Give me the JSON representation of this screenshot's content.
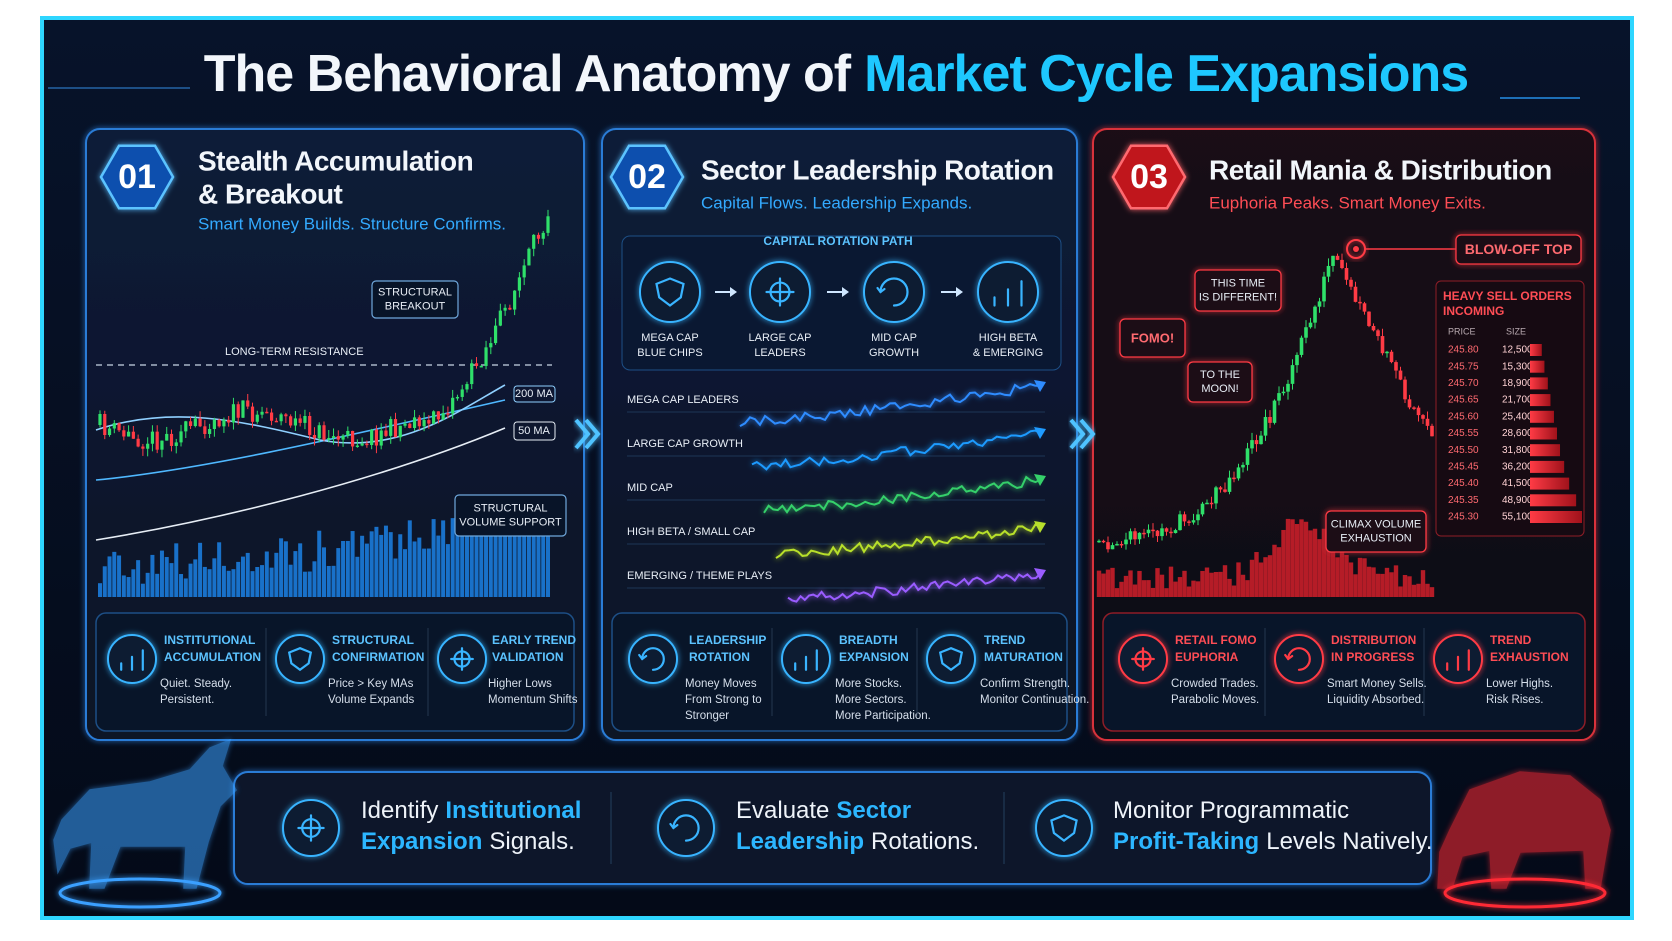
{
  "title": {
    "lead": "The Behavioral Anatomy of",
    "highlight": "Market Cycle Expansions"
  },
  "panels": [
    {
      "number": "01",
      "title": [
        "Stealth Accumulation",
        "& Breakout"
      ],
      "subtitle": "Smart Money Builds. Structure Confirms.",
      "chart": {
        "breakout": [
          "STRUCTURAL",
          "BREAKOUT"
        ],
        "resistance": "LONG-TERM RESISTANCE",
        "ma_long": "200 MA",
        "ma_short": "50 MA",
        "volume": [
          "STRUCTURAL",
          "VOLUME SUPPORT"
        ]
      },
      "features": [
        {
          "title": [
            "INSTITUTIONAL",
            "ACCUMULATION"
          ],
          "text": [
            "Quiet. Steady.",
            "Persistent."
          ]
        },
        {
          "title": [
            "STRUCTURAL",
            "CONFIRMATION"
          ],
          "text": [
            "Price > Key MAs",
            "Volume Expands"
          ]
        },
        {
          "title": [
            "EARLY TREND",
            "VALIDATION"
          ],
          "text": [
            "Higher Lows",
            "Momentum Shifts"
          ]
        }
      ]
    },
    {
      "number": "02",
      "title": [
        "Sector Leadership Rotation"
      ],
      "subtitle": "Capital Flows. Leadership Expands.",
      "path": {
        "label": "CAPITAL ROTATION PATH",
        "steps": [
          [
            "MEGA CAP",
            "BLUE CHIPS"
          ],
          [
            "LARGE CAP",
            "LEADERS"
          ],
          [
            "MID CAP",
            "GROWTH"
          ],
          [
            "HIGH BETA",
            "& EMERGING"
          ]
        ]
      },
      "sectors": [
        {
          "name": "MEGA CAP LEADERS",
          "color": "#2f8cff"
        },
        {
          "name": "LARGE CAP GROWTH",
          "color": "#1f9bff"
        },
        {
          "name": "MID CAP",
          "color": "#35d06a"
        },
        {
          "name": "HIGH BETA / SMALL CAP",
          "color": "#b8e02c"
        },
        {
          "name": "EMERGING / THEME PLAYS",
          "color": "#9a5cff"
        }
      ],
      "features": [
        {
          "title": [
            "LEADERSHIP",
            "ROTATION"
          ],
          "text": [
            "Money Moves",
            "From Strong to",
            "Stronger"
          ]
        },
        {
          "title": [
            "BREADTH",
            "EXPANSION"
          ],
          "text": [
            "More Stocks.",
            "More Sectors.",
            "More Participation."
          ]
        },
        {
          "title": [
            "TREND",
            "MATURATION"
          ],
          "text": [
            "Confirm Strength.",
            "Monitor Continuation."
          ]
        }
      ]
    },
    {
      "number": "03",
      "title": [
        "Retail Mania & Distribution"
      ],
      "subtitle": "Euphoria Peaks. Smart Money Exits.",
      "callouts": {
        "top": "BLOW-OFF TOP",
        "different": [
          "THIS TIME",
          "IS DIFFERENT!"
        ],
        "fomo": "FOMO!",
        "moon": [
          "TO THE",
          "MOON!"
        ],
        "climax": [
          "CLIMAX VOLUME",
          "EXHAUSTION"
        ]
      },
      "order_book": {
        "title": [
          "HEAVY SELL ORDERS",
          "INCOMING"
        ],
        "headers": [
          "PRICE",
          "SIZE"
        ],
        "rows": [
          {
            "price": "245.80",
            "size": {
              "value": 12500,
              "label": "12,500"
            }
          },
          {
            "price": "245.75",
            "size": {
              "value": 15300,
              "label": "15,300"
            }
          },
          {
            "price": "245.70",
            "size": {
              "value": 18900,
              "label": "18,900"
            }
          },
          {
            "price": "245.65",
            "size": {
              "value": 21700,
              "label": "21,700"
            }
          },
          {
            "price": "245.60",
            "size": {
              "value": 25400,
              "label": "25,400"
            }
          },
          {
            "price": "245.55",
            "size": {
              "value": 28600,
              "label": "28,600"
            }
          },
          {
            "price": "245.50",
            "size": {
              "value": 31800,
              "label": "31,800"
            }
          },
          {
            "price": "245.45",
            "size": {
              "value": 36200,
              "label": "36,200"
            }
          },
          {
            "price": "245.40",
            "size": {
              "value": 41500,
              "label": "41,500"
            }
          },
          {
            "price": "245.35",
            "size": {
              "value": 48900,
              "label": "48,900"
            }
          },
          {
            "price": "245.30",
            "size": {
              "value": 55100,
              "label": "55,100"
            }
          }
        ]
      },
      "features": [
        {
          "title": [
            "RETAIL FOMO",
            "EUPHORIA"
          ],
          "text": [
            "Crowded Trades.",
            "Parabolic Moves."
          ]
        },
        {
          "title": [
            "DISTRIBUTION",
            "IN PROGRESS"
          ],
          "text": [
            "Smart Money Sells.",
            "Liquidity Absorbed."
          ]
        },
        {
          "title": [
            "TREND",
            "EXHAUSTION"
          ],
          "text": [
            "Lower Highs.",
            "Risk Rises."
          ]
        }
      ]
    }
  ],
  "takeaways": [
    {
      "lines": [
        [
          {
            "text": "Identify",
            "highlight": false
          },
          {
            "text": "Institutional",
            "highlight": true
          }
        ],
        [
          {
            "text": "Expansion",
            "highlight": true
          },
          {
            "text": "Signals.",
            "highlight": false
          }
        ]
      ]
    },
    {
      "lines": [
        [
          {
            "text": "Evaluate",
            "highlight": false
          },
          {
            "text": "Sector",
            "highlight": true
          }
        ],
        [
          {
            "text": "Leadership",
            "highlight": true
          },
          {
            "text": "Rotations.",
            "highlight": false
          }
        ]
      ]
    },
    {
      "lines": [
        [
          {
            "text": "Monitor Programmatic",
            "highlight": false
          }
        ],
        [
          {
            "text": "Profit-Taking",
            "highlight": true
          },
          {
            "text": "Levels Natively.",
            "highlight": false
          }
        ]
      ]
    }
  ]
}
